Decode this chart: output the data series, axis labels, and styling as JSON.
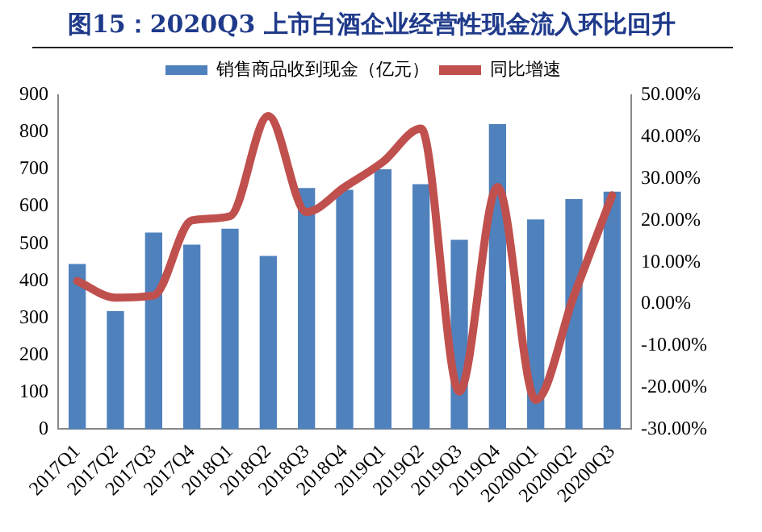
{
  "chart_data": {
    "type": "bar",
    "title": "图15：2020Q3 上市白酒企业经营性现金流入环比回升",
    "categories": [
      "2017Q1",
      "2017Q2",
      "2017Q3",
      "2017Q4",
      "2018Q1",
      "2018Q2",
      "2018Q3",
      "2018Q4",
      "2019Q1",
      "2019Q2",
      "2019Q3",
      "2019Q4",
      "20200Q1",
      "20200Q2",
      "20200Q3"
    ],
    "series": [
      {
        "name": "销售商品收到现金（亿元）",
        "color": "#4f81bd",
        "values": [
          445,
          318,
          530,
          497,
          540,
          467,
          650,
          645,
          700,
          660,
          510,
          822,
          565,
          620,
          640
        ]
      },
      {
        "name": "同比增速",
        "type": "line",
        "axis": "y2",
        "color": "#c0504d",
        "values": [
          5.5,
          1.5,
          2,
          20,
          21,
          45,
          22,
          28,
          34,
          42,
          -21,
          28,
          -23,
          2,
          26
        ]
      }
    ],
    "ylim": [
      0,
      900
    ],
    "yticks": [
      0,
      100,
      200,
      300,
      400,
      500,
      600,
      700,
      800,
      900
    ],
    "y2lim": [
      -30,
      50
    ],
    "y2ticks": [
      {
        "value": -30,
        "label": "-30.00%"
      },
      {
        "value": -20,
        "label": "-20.00%"
      },
      {
        "value": -10,
        "label": "-10.00%"
      },
      {
        "value": 0,
        "label": "0.00%"
      },
      {
        "value": 10,
        "label": "10.00%"
      },
      {
        "value": 20,
        "label": "20.00%"
      },
      {
        "value": 30,
        "label": "30.00%"
      },
      {
        "value": 40,
        "label": "40.00%"
      },
      {
        "value": 50,
        "label": "50.00%"
      }
    ],
    "legend": "top",
    "grid": false,
    "marker": "none",
    "line_style": "solid"
  }
}
